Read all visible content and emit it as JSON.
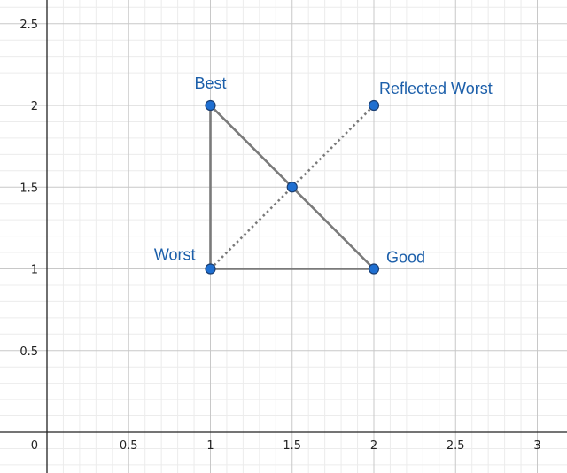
{
  "chart_data": {
    "type": "scatter",
    "xlim": [
      -0.08,
      3.08
    ],
    "ylim": [
      -0.25,
      2.64
    ],
    "grid": true,
    "x_ticks": [
      "0",
      "0.5",
      "1",
      "1.5",
      "2",
      "2.5",
      "3"
    ],
    "y_ticks": [
      "0.5",
      "1",
      "1.5",
      "2",
      "2.5"
    ],
    "origin_label": "0",
    "points": [
      {
        "label": "Best",
        "x": 1,
        "y": 2
      },
      {
        "label": "Worst",
        "x": 1,
        "y": 1
      },
      {
        "label": "Good",
        "x": 2,
        "y": 1
      },
      {
        "label": "",
        "x": 1.5,
        "y": 1.5
      },
      {
        "label": "Reflected Worst",
        "x": 2,
        "y": 2
      }
    ],
    "triangle": [
      [
        1,
        2
      ],
      [
        1,
        1
      ],
      [
        2,
        1
      ]
    ],
    "dotted_segment": [
      [
        1,
        1
      ],
      [
        2,
        2
      ]
    ],
    "colors": {
      "point_fill": "#1f6fd1",
      "point_stroke": "#1b3f73",
      "label": "#1c5faa",
      "shape": "#7a7a7a",
      "grid_major": "#c8c8c8",
      "grid_minor": "#ececec",
      "axis": "#222222"
    }
  }
}
